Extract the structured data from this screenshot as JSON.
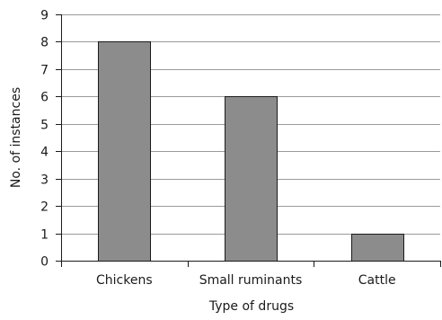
{
  "chart_data": {
    "type": "bar",
    "title": "",
    "xlabel": "Type of drugs",
    "ylabel": "No. of instances",
    "categories": [
      "Chickens",
      "Small ruminants",
      "Cattle"
    ],
    "values": [
      8,
      6,
      1
    ],
    "ylim": [
      0,
      9
    ],
    "yticks": [
      0,
      1,
      2,
      3,
      4,
      5,
      6,
      7,
      8,
      9
    ],
    "grid": true,
    "legend": "none",
    "bar_color": "#8c8c8c",
    "bar_edge_color": "#1a1a1a",
    "grid_color": "#9a9a9a",
    "axis_color": "#1a1a1a"
  }
}
